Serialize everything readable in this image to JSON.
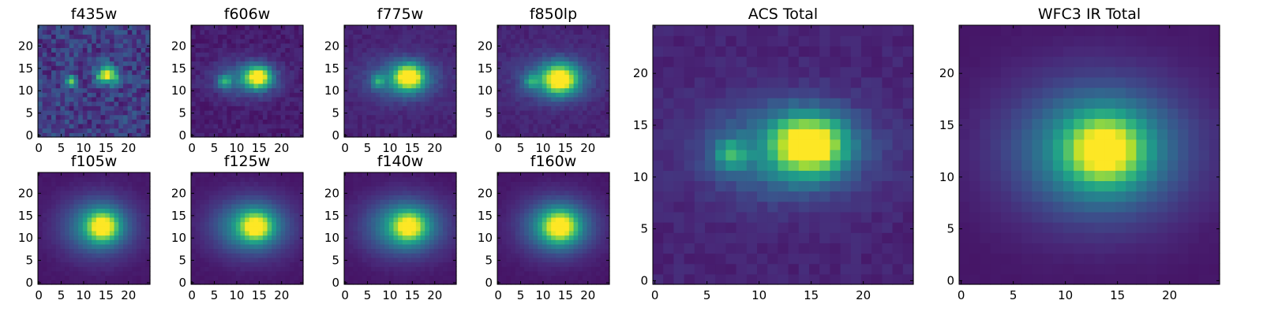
{
  "chart_data": [
    {
      "type": "heatmap",
      "title": "f435w",
      "xticks": [
        "0",
        "5",
        "10",
        "15",
        "20"
      ],
      "yticks": [
        "0",
        "5",
        "10",
        "15",
        "20"
      ],
      "xlim": [
        0,
        24
      ],
      "ylim": [
        0,
        24
      ],
      "colormap": "viridis",
      "components": [
        {
          "x": 15,
          "y": 13.5,
          "sx": 1.6,
          "sy": 1.4,
          "amp": 0.9
        },
        {
          "x": 7,
          "y": 12,
          "sx": 0.9,
          "sy": 0.9,
          "amp": 0.55
        }
      ],
      "background": 0.18,
      "noise": 0.12
    },
    {
      "type": "heatmap",
      "title": "f606w",
      "xticks": [
        "0",
        "5",
        "10",
        "15",
        "20"
      ],
      "yticks": [
        "0",
        "5",
        "10",
        "15",
        "20"
      ],
      "xlim": [
        0,
        24
      ],
      "ylim": [
        0,
        24
      ],
      "colormap": "viridis",
      "components": [
        {
          "x": 14.5,
          "y": 13,
          "sx": 2.0,
          "sy": 1.7,
          "amp": 0.85
        },
        {
          "x": 7,
          "y": 12,
          "sx": 1.0,
          "sy": 1.0,
          "amp": 0.45
        },
        {
          "x": 12,
          "y": 12.5,
          "sx": 5.0,
          "sy": 2.8,
          "amp": 0.3
        }
      ],
      "background": 0.08,
      "noise": 0.04
    },
    {
      "type": "heatmap",
      "title": "f775w",
      "xticks": [
        "0",
        "5",
        "10",
        "15",
        "20"
      ],
      "yticks": [
        "0",
        "5",
        "10",
        "15",
        "20"
      ],
      "xlim": [
        0,
        24
      ],
      "ylim": [
        0,
        24
      ],
      "colormap": "viridis",
      "components": [
        {
          "x": 14,
          "y": 13,
          "sx": 2.2,
          "sy": 1.9,
          "amp": 0.85
        },
        {
          "x": 7,
          "y": 12,
          "sx": 1.0,
          "sy": 1.0,
          "amp": 0.35
        },
        {
          "x": 12.5,
          "y": 12.5,
          "sx": 5.5,
          "sy": 3.2,
          "amp": 0.35
        }
      ],
      "background": 0.1,
      "noise": 0.03
    },
    {
      "type": "heatmap",
      "title": "f850lp",
      "xticks": [
        "0",
        "5",
        "10",
        "15",
        "20"
      ],
      "yticks": [
        "0",
        "5",
        "10",
        "15",
        "20"
      ],
      "xlim": [
        0,
        24
      ],
      "ylim": [
        0,
        24
      ],
      "colormap": "viridis",
      "components": [
        {
          "x": 13.5,
          "y": 12.5,
          "sx": 2.6,
          "sy": 2.2,
          "amp": 0.8
        },
        {
          "x": 7,
          "y": 12,
          "sx": 1.1,
          "sy": 1.1,
          "amp": 0.3
        },
        {
          "x": 12.5,
          "y": 12.5,
          "sx": 5.5,
          "sy": 3.4,
          "amp": 0.35
        }
      ],
      "background": 0.1,
      "noise": 0.03
    },
    {
      "type": "heatmap",
      "title": "f105w",
      "xticks": [
        "0",
        "5",
        "10",
        "15",
        "20"
      ],
      "yticks": [
        "0",
        "5",
        "10",
        "15",
        "20"
      ],
      "xlim": [
        0,
        24
      ],
      "ylim": [
        0,
        24
      ],
      "colormap": "viridis",
      "components": [
        {
          "x": 14,
          "y": 12.5,
          "sx": 2.4,
          "sy": 2.2,
          "amp": 0.7
        },
        {
          "x": 13,
          "y": 12.5,
          "sx": 5.5,
          "sy": 4.5,
          "amp": 0.45
        }
      ],
      "background": 0.06,
      "noise": 0.01
    },
    {
      "type": "heatmap",
      "title": "f125w",
      "xticks": [
        "0",
        "5",
        "10",
        "15",
        "20"
      ],
      "yticks": [
        "0",
        "5",
        "10",
        "15",
        "20"
      ],
      "xlim": [
        0,
        24
      ],
      "ylim": [
        0,
        24
      ],
      "colormap": "viridis",
      "components": [
        {
          "x": 14,
          "y": 12.5,
          "sx": 2.4,
          "sy": 2.1,
          "amp": 0.65
        },
        {
          "x": 13,
          "y": 12.5,
          "sx": 5.8,
          "sy": 4.3,
          "amp": 0.5
        }
      ],
      "background": 0.06,
      "noise": 0.01
    },
    {
      "type": "heatmap",
      "title": "f140w",
      "xticks": [
        "0",
        "5",
        "10",
        "15",
        "20"
      ],
      "yticks": [
        "0",
        "5",
        "10",
        "15",
        "20"
      ],
      "xlim": [
        0,
        24
      ],
      "ylim": [
        0,
        24
      ],
      "colormap": "viridis",
      "components": [
        {
          "x": 14,
          "y": 12.5,
          "sx": 2.5,
          "sy": 2.2,
          "amp": 0.62
        },
        {
          "x": 13,
          "y": 12.5,
          "sx": 6.0,
          "sy": 4.4,
          "amp": 0.5
        }
      ],
      "background": 0.06,
      "noise": 0.01
    },
    {
      "type": "heatmap",
      "title": "f160w",
      "xticks": [
        "0",
        "5",
        "10",
        "15",
        "20"
      ],
      "yticks": [
        "0",
        "5",
        "10",
        "15",
        "20"
      ],
      "xlim": [
        0,
        24
      ],
      "ylim": [
        0,
        24
      ],
      "colormap": "viridis",
      "components": [
        {
          "x": 13.5,
          "y": 12.5,
          "sx": 2.6,
          "sy": 2.3,
          "amp": 0.65
        },
        {
          "x": 13,
          "y": 12.5,
          "sx": 5.5,
          "sy": 4.3,
          "amp": 0.5
        }
      ],
      "background": 0.06,
      "noise": 0.01
    },
    {
      "type": "heatmap",
      "title": "ACS Total",
      "xticks": [
        "0",
        "5",
        "10",
        "15",
        "20"
      ],
      "yticks": [
        "0",
        "5",
        "10",
        "15",
        "20"
      ],
      "xlim": [
        0,
        24
      ],
      "ylim": [
        0,
        24
      ],
      "colormap": "viridis",
      "components": [
        {
          "x": 14.5,
          "y": 13,
          "sx": 2.3,
          "sy": 1.9,
          "amp": 0.85
        },
        {
          "x": 7,
          "y": 12,
          "sx": 1.0,
          "sy": 1.0,
          "amp": 0.4
        },
        {
          "x": 12.5,
          "y": 12.5,
          "sx": 5.5,
          "sy": 3.2,
          "amp": 0.35
        }
      ],
      "background": 0.1,
      "noise": 0.03
    },
    {
      "type": "heatmap",
      "title": "WFC3 IR Total",
      "xticks": [
        "0",
        "5",
        "10",
        "15",
        "20"
      ],
      "yticks": [
        "0",
        "5",
        "10",
        "15",
        "20"
      ],
      "xlim": [
        0,
        24
      ],
      "ylim": [
        0,
        24
      ],
      "colormap": "viridis",
      "components": [
        {
          "x": 13.5,
          "y": 12.5,
          "sx": 2.5,
          "sy": 2.2,
          "amp": 0.65
        },
        {
          "x": 13,
          "y": 12.5,
          "sx": 5.8,
          "sy": 4.5,
          "amp": 0.5
        }
      ],
      "background": 0.06,
      "noise": 0.005
    }
  ]
}
